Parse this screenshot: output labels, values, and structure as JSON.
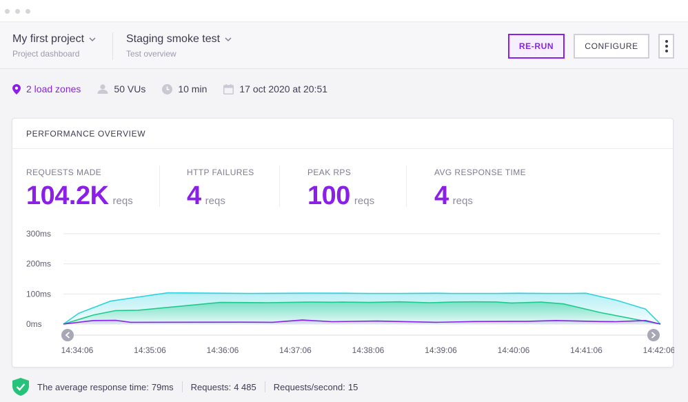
{
  "header": {
    "project_title": "My first project",
    "project_sub": "Project dashboard",
    "test_title": "Staging smoke test",
    "test_sub": "Test overview",
    "rerun_label": "RE-RUN",
    "configure_label": "CONFIGURE"
  },
  "meta": {
    "zones": "2 load zones",
    "vus": "50 VUs",
    "duration": "10 min",
    "date": "17 oct 2020 at 20:51"
  },
  "card": {
    "title": "PERFORMANCE OVERVIEW",
    "stats": [
      {
        "label": "REQUESTS MADE",
        "value": "104.2K",
        "unit": "reqs"
      },
      {
        "label": "HTTP FAILURES",
        "value": "4",
        "unit": "reqs"
      },
      {
        "label": "PEAK RPS",
        "value": "100",
        "unit": "reqs"
      },
      {
        "label": "AVG RESPONSE TIME",
        "value": "4",
        "unit": "reqs"
      }
    ]
  },
  "chart_data": {
    "type": "area",
    "y_unit": "ms",
    "ylim": [
      0,
      300
    ],
    "y_ticks": [
      "0ms",
      "100ms",
      "200ms",
      "300ms"
    ],
    "x_labels": [
      "14:34:06",
      "14:35:06",
      "14:36:06",
      "14:37:06",
      "14:38:06",
      "14:39:06",
      "14:40:06",
      "14:41:06",
      "14:42:06"
    ],
    "grid": true,
    "series": [
      {
        "color": "#2ed3e0",
        "x": [
          0,
          2.05,
          6.3,
          14.0,
          25.0,
          33.0,
          38.0,
          41.0,
          45.0,
          50.0,
          52.0,
          53.5,
          58.0,
          61.0,
          65.0,
          68.0,
          70.0,
          74.0,
          78.0,
          80.0
        ],
        "values": [
          0,
          36.0,
          76.2,
          104.0,
          102.0,
          103.0,
          102.5,
          102.0,
          102.0,
          102.5,
          102.0,
          102.0,
          102.0,
          102.5,
          102.0,
          102.0,
          102.5,
          80.0,
          50.0,
          0
        ]
      },
      {
        "color": "#1ec98a",
        "x": [
          0,
          4.0,
          7.0,
          10.0,
          21.0,
          27.0,
          33.0,
          36.0,
          37.5,
          41.0,
          45.0,
          49.0,
          52.0,
          55.0,
          58.0,
          60.0,
          64.0,
          67.0,
          72.0,
          80.0
        ],
        "values": [
          0,
          30.0,
          45.0,
          46.0,
          72.0,
          71.0,
          73.0,
          72.5,
          73.0,
          72.0,
          74.0,
          71.0,
          73.0,
          74.0,
          73.5,
          70.0,
          73.0,
          67.0,
          38.0,
          0
        ]
      },
      {
        "color": "#8b1fe8",
        "x": [
          0,
          4.0,
          7.0,
          9.0,
          24.0,
          28.0,
          32.0,
          36.0,
          42.0,
          50.0,
          55.0,
          60.0,
          62.0,
          66.0,
          72.0,
          74.0,
          78.0,
          80.0
        ],
        "values": [
          0,
          12.0,
          12.5,
          6.0,
          6.5,
          6.0,
          13.5,
          8.0,
          10.0,
          6.0,
          8.5,
          9.0,
          9.0,
          12.0,
          8.5,
          8.0,
          12.0,
          0
        ]
      }
    ]
  },
  "footer": {
    "avg_label": "The average response time:",
    "avg_value": "79ms",
    "req_label": "Requests:",
    "req_value": "4 485",
    "rps_label": "Requests/second:",
    "rps_value": "15"
  }
}
